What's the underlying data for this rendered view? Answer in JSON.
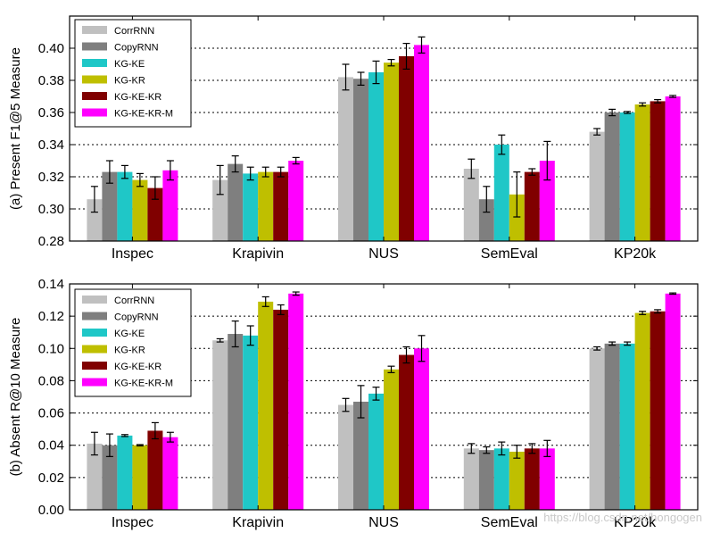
{
  "chart_data": [
    {
      "type": "bar",
      "panel": "a",
      "ylabel": "(a) Present F1@5 Measure",
      "ylim": [
        0.28,
        0.42
      ],
      "yticks": [
        0.28,
        0.3,
        0.32,
        0.34,
        0.36,
        0.38,
        0.4
      ],
      "ytick_labels": [
        "0.28",
        "0.30",
        "0.32",
        "0.34",
        "0.36",
        "0.38",
        "0.40"
      ],
      "grid": "dotted horizontal",
      "legend_position": "top-left",
      "categories": [
        "Inspec",
        "Krapivin",
        "NUS",
        "SemEval",
        "KP20k"
      ],
      "series": [
        {
          "name": "CorrRNN",
          "color": "#c0c0c0",
          "values": [
            0.306,
            0.318,
            0.382,
            0.325,
            0.348
          ],
          "errors": [
            0.008,
            0.009,
            0.008,
            0.006,
            0.002
          ]
        },
        {
          "name": "CopyRNN",
          "color": "#7f7f7f",
          "values": [
            0.323,
            0.328,
            0.381,
            0.306,
            0.36
          ],
          "errors": [
            0.007,
            0.005,
            0.004,
            0.008,
            0.002
          ]
        },
        {
          "name": "KG-KE",
          "color": "#1fc7c7",
          "values": [
            0.323,
            0.322,
            0.385,
            0.34,
            0.36
          ],
          "errors": [
            0.004,
            0.004,
            0.007,
            0.006,
            0.0006
          ]
        },
        {
          "name": "KG-KR",
          "color": "#bfbf00",
          "values": [
            0.318,
            0.323,
            0.391,
            0.309,
            0.365
          ],
          "errors": [
            0.004,
            0.003,
            0.002,
            0.014,
            0.001
          ]
        },
        {
          "name": "KG-KE-KR",
          "color": "#800000",
          "values": [
            0.313,
            0.323,
            0.395,
            0.323,
            0.367
          ],
          "errors": [
            0.007,
            0.003,
            0.008,
            0.002,
            0.001
          ]
        },
        {
          "name": "KG-KE-KR-M",
          "color": "#ff00ff",
          "values": [
            0.324,
            0.33,
            0.402,
            0.33,
            0.37
          ],
          "errors": [
            0.006,
            0.002,
            0.005,
            0.012,
            0.0006
          ]
        }
      ]
    },
    {
      "type": "bar",
      "panel": "b",
      "ylabel": "(b) Absent R@10 Measure",
      "ylim": [
        0.0,
        0.14
      ],
      "yticks": [
        0.0,
        0.02,
        0.04,
        0.06,
        0.08,
        0.1,
        0.12,
        0.14
      ],
      "ytick_labels": [
        "0.00",
        "0.02",
        "0.04",
        "0.06",
        "0.08",
        "0.10",
        "0.12",
        "0.14"
      ],
      "grid": "dotted horizontal",
      "legend_position": "top-left",
      "categories": [
        "Inspec",
        "Krapivin",
        "NUS",
        "SemEval",
        "KP20k"
      ],
      "series": [
        {
          "name": "CorrRNN",
          "color": "#c0c0c0",
          "values": [
            0.041,
            0.105,
            0.065,
            0.038,
            0.1
          ],
          "errors": [
            0.007,
            0.001,
            0.004,
            0.003,
            0.001
          ]
        },
        {
          "name": "CopyRNN",
          "color": "#7f7f7f",
          "values": [
            0.04,
            0.109,
            0.067,
            0.037,
            0.103
          ],
          "errors": [
            0.007,
            0.008,
            0.01,
            0.002,
            0.001
          ]
        },
        {
          "name": "KG-KE",
          "color": "#1fc7c7",
          "values": [
            0.046,
            0.108,
            0.072,
            0.038,
            0.103
          ],
          "errors": [
            0.0006,
            0.006,
            0.004,
            0.004,
            0.001
          ]
        },
        {
          "name": "KG-KR",
          "color": "#bfbf00",
          "values": [
            0.04,
            0.129,
            0.087,
            0.036,
            0.122
          ],
          "errors": [
            0.0004,
            0.003,
            0.002,
            0.004,
            0.001
          ]
        },
        {
          "name": "KG-KE-KR",
          "color": "#800000",
          "values": [
            0.049,
            0.124,
            0.096,
            0.038,
            0.123
          ],
          "errors": [
            0.005,
            0.003,
            0.005,
            0.003,
            0.001
          ]
        },
        {
          "name": "KG-KE-KR-M",
          "color": "#ff00ff",
          "values": [
            0.045,
            0.134,
            0.1,
            0.038,
            0.134
          ],
          "errors": [
            0.003,
            0.001,
            0.008,
            0.005,
            0.0004
          ]
        }
      ]
    }
  ],
  "watermark": "https://blog.csdn.net/hongogen"
}
